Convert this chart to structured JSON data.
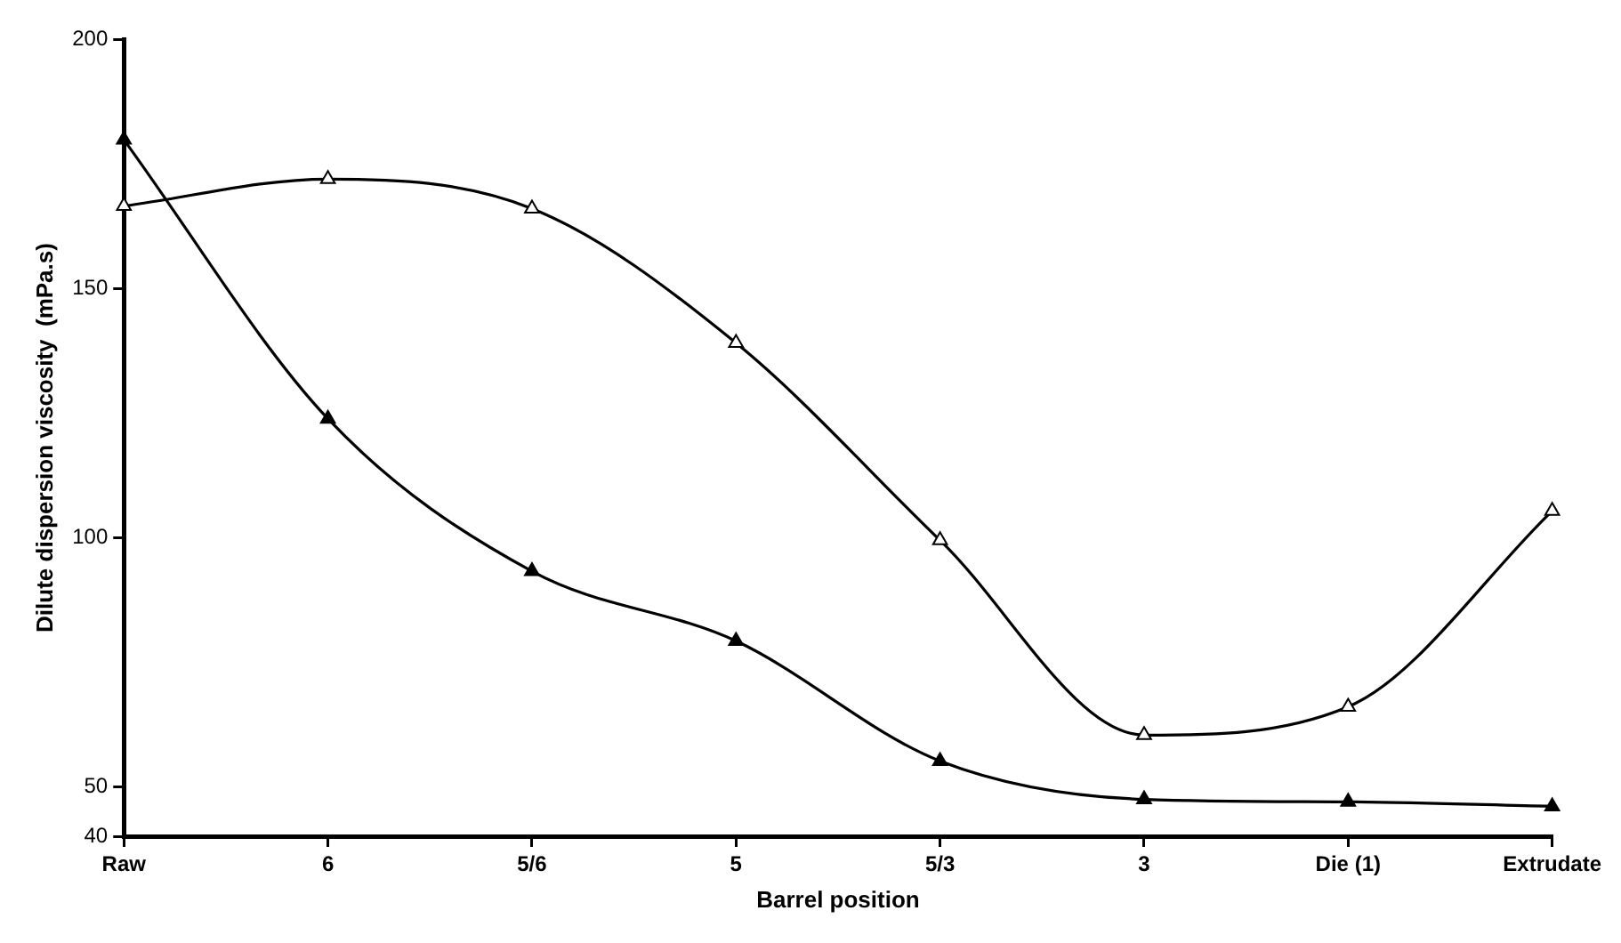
{
  "chart_data": {
    "type": "line",
    "xlabel": "Barrel position",
    "ylabel": "Dilute dispersion viscosity  (mPa.s)",
    "categories": [
      "Raw",
      "6",
      "5/6",
      "5",
      "5/3",
      "3",
      "Die (1)",
      "Extrudate"
    ],
    "series": [
      {
        "color": "#000000",
        "values": [
          166.5,
          171.9,
          166,
          139,
          99.4,
          60.3,
          66,
          105.3
        ]
      },
      {
        "color": "#000000",
        "values": [
          179.8,
          123.8,
          93.2,
          79.2,
          55.1,
          47.4,
          46.9,
          46
        ]
      }
    ],
    "ylim": [
      40,
      200
    ],
    "yticks": [
      40,
      50,
      100,
      150,
      200
    ],
    "grid": false,
    "legend": false,
    "marker": "triangle",
    "line_style": "solid"
  }
}
